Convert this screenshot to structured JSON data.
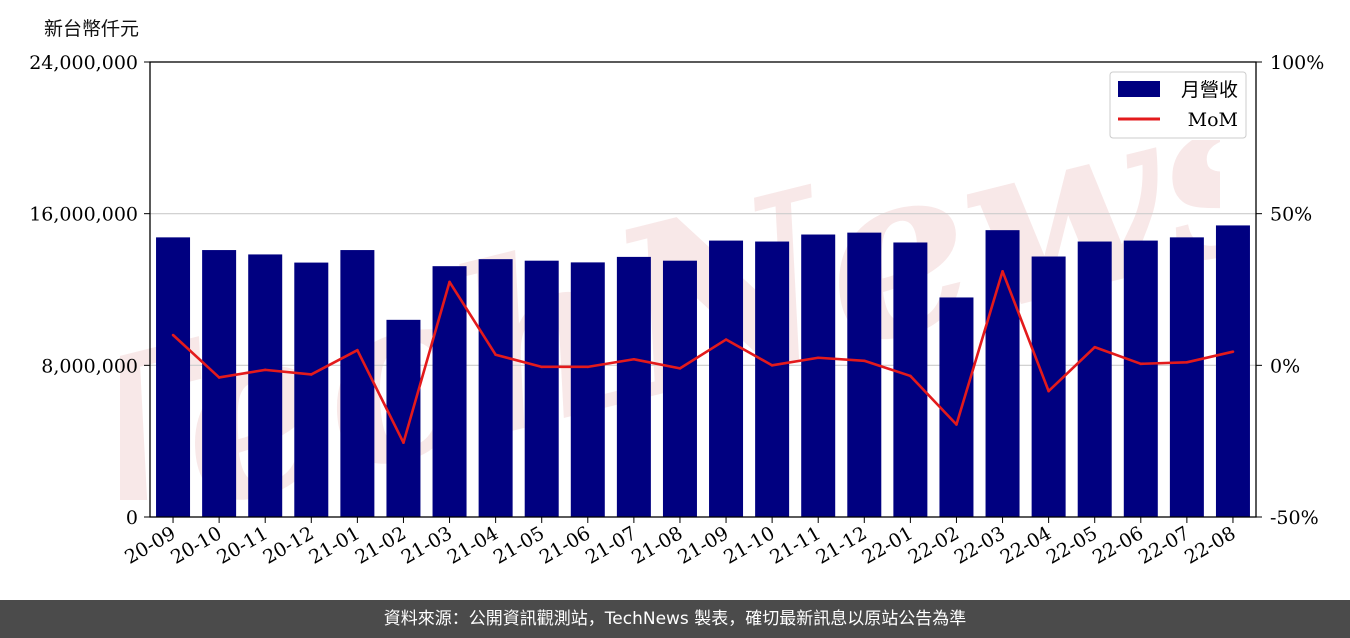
{
  "unit_label": "新台幣仟元",
  "footer_text": "資料來源：公開資訊觀測站，TechNews 製表，確切最新訊息以原站公告為準",
  "watermark_text": "TechNews",
  "colors": {
    "bar": "#000080",
    "line": "#e31a1c",
    "grid": "#cccccc",
    "footer_bg": "#4b4b4b",
    "watermark": "#f3d6d6"
  },
  "chart_data": {
    "type": "bar",
    "categories": [
      "20-09",
      "20-10",
      "20-11",
      "20-12",
      "21-01",
      "21-02",
      "21-03",
      "21-04",
      "21-05",
      "21-06",
      "21-07",
      "21-08",
      "21-09",
      "21-10",
      "21-11",
      "21-12",
      "22-01",
      "22-02",
      "22-03",
      "22-04",
      "22-05",
      "22-06",
      "22-07",
      "22-08"
    ],
    "series": [
      {
        "name": "月營收",
        "axis": "left",
        "type": "bar",
        "values": [
          14750000,
          14080000,
          13850000,
          13420000,
          14080000,
          10400000,
          13230000,
          13600000,
          13520000,
          13430000,
          13720000,
          13520000,
          14580000,
          14530000,
          14900000,
          15000000,
          14480000,
          11580000,
          15130000,
          13740000,
          14530000,
          14580000,
          14750000,
          15380000
        ]
      },
      {
        "name": "MoM",
        "axis": "right",
        "type": "line",
        "values": [
          10,
          -4,
          -1.5,
          -3,
          5,
          -25.5,
          27.5,
          3.5,
          -0.5,
          -0.5,
          2,
          -1,
          8.5,
          0,
          2.5,
          1.5,
          -3.5,
          -19.5,
          31,
          -8.5,
          6,
          0.5,
          1,
          4.5
        ]
      }
    ],
    "left_axis": {
      "min": 0,
      "max": 24000000,
      "ticks": [
        "0",
        "8,000,000",
        "16,000,000",
        "24,000,000"
      ]
    },
    "right_axis": {
      "min": -50,
      "max": 100,
      "ticks": [
        "-50%",
        "0%",
        "50%",
        "100%"
      ]
    },
    "grid": "horizontal",
    "legend": {
      "placement": "top-right",
      "entries": [
        "月營收",
        "MoM"
      ]
    }
  }
}
